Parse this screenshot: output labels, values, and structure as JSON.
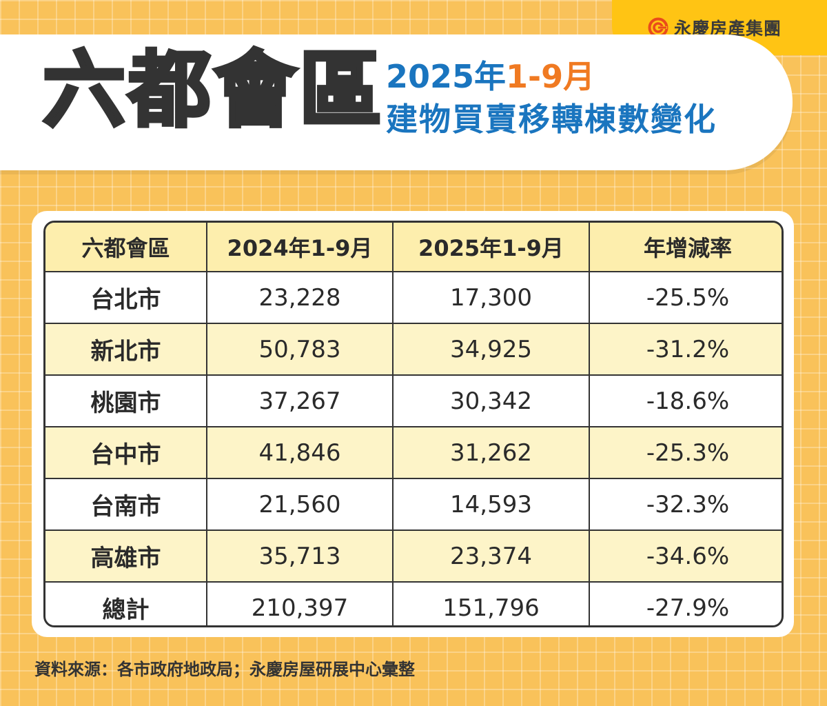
{
  "logo": {
    "text": "永慶房產集團",
    "icon": "yungching-swirl-icon",
    "color": "#e94b1b"
  },
  "header": {
    "title": "六都會區",
    "subtitle_part1": "2025年",
    "subtitle_part2": "1-9月",
    "subtitle_line2": "建物買賣移轉棟數變化"
  },
  "table": {
    "columns": [
      "六都會區",
      "2024年1-9月",
      "2025年1-9月",
      "年增減率"
    ],
    "rows": [
      {
        "region": "台北市",
        "y2024": "23,228",
        "y2025": "17,300",
        "change": "-25.5%"
      },
      {
        "region": "新北市",
        "y2024": "50,783",
        "y2025": "34,925",
        "change": "-31.2%"
      },
      {
        "region": "桃園市",
        "y2024": "37,267",
        "y2025": "30,342",
        "change": "-18.6%"
      },
      {
        "region": "台中市",
        "y2024": "41,846",
        "y2025": "31,262",
        "change": "-25.3%"
      },
      {
        "region": "台南市",
        "y2024": "21,560",
        "y2025": "14,593",
        "change": "-32.3%"
      },
      {
        "region": "高雄市",
        "y2024": "35,713",
        "y2025": "23,374",
        "change": "-34.6%"
      },
      {
        "region": "總計",
        "y2024": "210,397",
        "y2025": "151,796",
        "change": "-27.9%"
      }
    ]
  },
  "footer": {
    "source": "資料來源：各市政府地政局；永慶房屋研展中心彙整"
  },
  "colors": {
    "background": "#f9c25a",
    "title_blue": "#1a75bf",
    "title_orange": "#f07a22",
    "header_row": "#fdeead",
    "shaded_row": "#fdf4c8"
  }
}
